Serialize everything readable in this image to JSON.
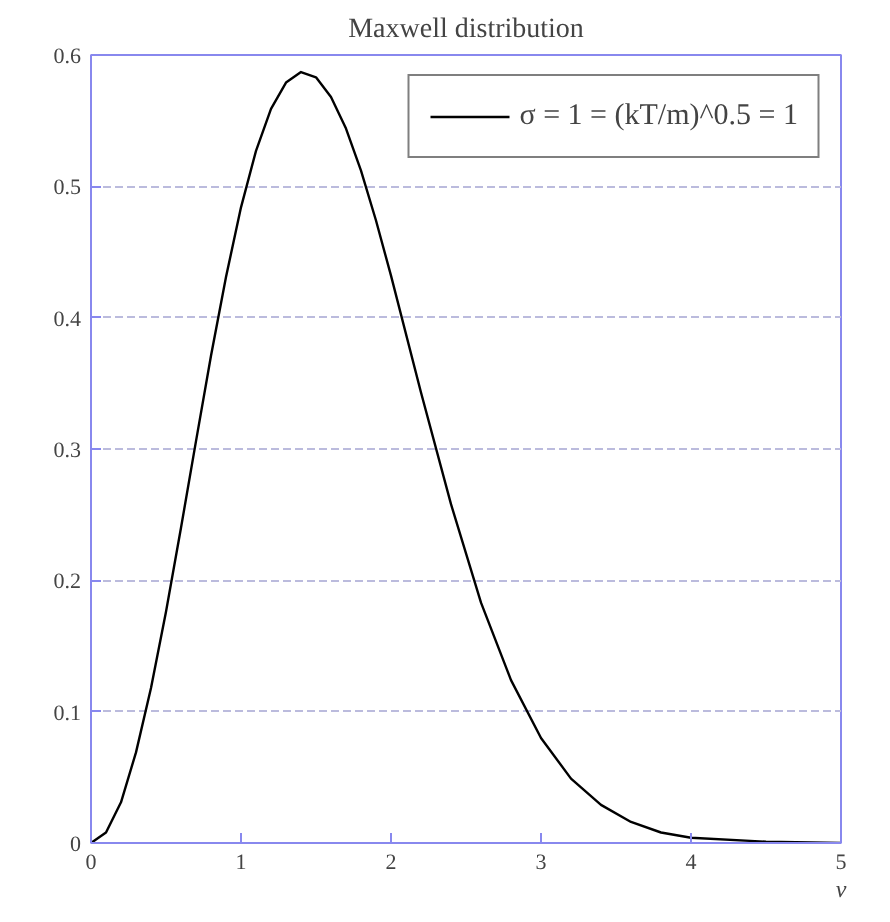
{
  "chart_data": {
    "type": "line",
    "title": "Maxwell distribution",
    "xlabel": "v",
    "x": [
      0,
      0.1,
      0.2,
      0.3,
      0.4,
      0.5,
      0.6,
      0.7,
      0.8,
      0.9,
      1.0,
      1.1,
      1.2,
      1.3,
      1.4,
      1.5,
      1.6,
      1.7,
      1.8,
      1.9,
      2.0,
      2.2,
      2.4,
      2.6,
      2.8,
      3.0,
      3.2,
      3.4,
      3.6,
      3.8,
      4.0,
      4.5,
      5.0
    ],
    "series": [
      {
        "name": "σ = 1 = (kT/m)^0.5 = 1",
        "color": "#000000",
        "values": [
          0,
          0.008,
          0.031,
          0.069,
          0.118,
          0.176,
          0.24,
          0.306,
          0.371,
          0.431,
          0.484,
          0.527,
          0.559,
          0.579,
          0.587,
          0.583,
          0.568,
          0.544,
          0.512,
          0.474,
          0.432,
          0.343,
          0.258,
          0.183,
          0.124,
          0.08,
          0.049,
          0.029,
          0.016,
          0.008,
          0.004,
          0.001,
          0
        ]
      }
    ],
    "xlim": [
      0,
      5
    ],
    "ylim": [
      0,
      0.6
    ],
    "xticks": [
      0,
      1,
      2,
      3,
      4,
      5
    ],
    "yticks": [
      0,
      0.1,
      0.2,
      0.3,
      0.4,
      0.5,
      0.6
    ],
    "grid": "y",
    "legend": "top right",
    "marker": "none",
    "line_style": "solid"
  }
}
